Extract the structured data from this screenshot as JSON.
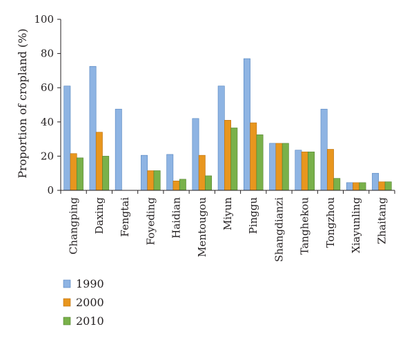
{
  "chart_data": {
    "type": "bar",
    "title": "",
    "xlabel": "",
    "ylabel": "Proportion of cropland (%)",
    "ylim": [
      0,
      100
    ],
    "yticks": [
      0,
      20,
      40,
      60,
      80,
      100
    ],
    "grid": false,
    "legend_position": "bottom-left",
    "categories": [
      "Changping",
      "Daxing",
      "Fengtai",
      "Foyeding",
      "Haidian",
      "Mentougou",
      "Miyun",
      "Pinggu",
      "Shangdianzi",
      "Tanghekou",
      "Tongzhou",
      "Xiayunling",
      "Zhaitang"
    ],
    "series": [
      {
        "name": "1990",
        "color": "#8eb4e3",
        "edge": "#4f81bd",
        "values": [
          61,
          72.5,
          47.5,
          20.5,
          21,
          42,
          61,
          77,
          27.5,
          23.5,
          47.5,
          4.5,
          10
        ]
      },
      {
        "name": "2000",
        "color": "#e8961e",
        "edge": "#b86d0c",
        "values": [
          21.5,
          34,
          0,
          11.5,
          5.5,
          20.5,
          41,
          39.5,
          27.5,
          22.5,
          24,
          4.5,
          5
        ]
      },
      {
        "name": "2010",
        "color": "#79b14a",
        "edge": "#4f7f2c",
        "values": [
          19,
          20,
          0,
          11.5,
          6.5,
          8.5,
          36.5,
          32.5,
          27.5,
          22.5,
          7,
          4.5,
          5
        ]
      }
    ]
  }
}
